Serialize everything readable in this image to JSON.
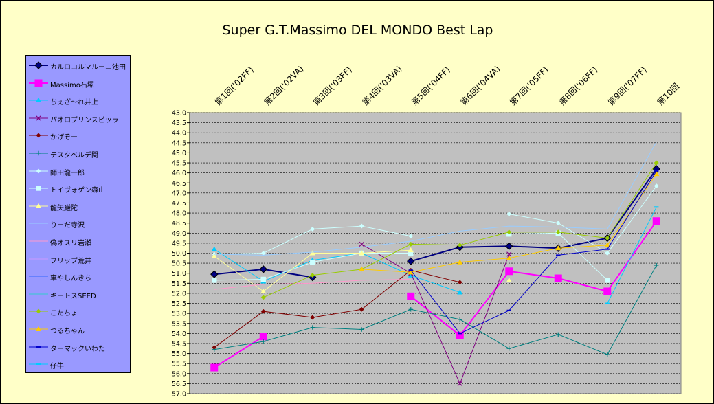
{
  "chart_data": {
    "type": "line",
    "title": "Super G.T.Massimo DEL MONDO Best Lap",
    "categories": [
      "第1回('02FF)",
      "第2回('02VA)",
      "第3回('03FF)",
      "第4回('03VA)",
      "第5回('04FF)",
      "第6回('04VA)",
      "第7回('05FF)",
      "第8回('06FF)",
      "第9回('07FF)",
      "第10回"
    ],
    "ylim": [
      57.0,
      43.0
    ],
    "ytick_step": 0.5,
    "y_reversed": true,
    "grid": true,
    "legend_position": "left",
    "series": [
      {
        "name": "カルロコルマルーニ池田",
        "color": "#000080",
        "marker": "diamond",
        "width": 2,
        "values": [
          51.05,
          50.8,
          51.2,
          null,
          50.4,
          49.7,
          49.65,
          49.75,
          49.25,
          45.8
        ]
      },
      {
        "name": "Massimo石塚",
        "color": "#ff00ff",
        "marker": "square",
        "width": 2,
        "values": [
          55.7,
          54.15,
          null,
          null,
          52.15,
          54.1,
          50.9,
          51.25,
          51.9,
          48.4
        ]
      },
      {
        "name": "ちぇざ～れ井上",
        "color": "#00ccff",
        "marker": "triangle",
        "width": 1,
        "values": [
          49.8,
          51.4,
          50.35,
          50.0,
          51.1,
          51.95,
          null,
          null,
          null,
          null
        ]
      },
      {
        "name": "パオロプリンスピッラ",
        "color": "#800080",
        "marker": "x",
        "width": 1,
        "values": [
          null,
          null,
          null,
          49.55,
          51.0,
          56.5,
          50.05,
          null,
          null,
          null
        ]
      },
      {
        "name": "かげぞー",
        "color": "#800000",
        "marker": "diamond",
        "width": 1,
        "values": [
          54.7,
          52.9,
          53.2,
          52.8,
          50.85,
          51.45,
          null,
          null,
          null,
          null
        ]
      },
      {
        "name": "テスタベルデ関",
        "color": "#008080",
        "marker": "plus",
        "width": 1,
        "values": [
          54.8,
          54.4,
          53.7,
          53.8,
          52.8,
          53.3,
          54.75,
          54.05,
          55.05,
          50.6
        ]
      },
      {
        "name": "師田龍一郎",
        "color": "#ccffff",
        "marker": "diamond",
        "width": 1,
        "values": [
          50.05,
          50.0,
          48.8,
          48.65,
          49.15,
          null,
          48.05,
          48.5,
          50.0,
          46.65
        ]
      },
      {
        "name": "トイヴォゲン森山",
        "color": "#ccffff",
        "marker": "square",
        "width": 1,
        "values": [
          51.35,
          51.3,
          50.45,
          50.0,
          50.0,
          null,
          49.05,
          49.0,
          51.35,
          null
        ]
      },
      {
        "name": "龍矢巌陀",
        "color": "#ffff99",
        "marker": "triangle",
        "width": 1,
        "values": [
          50.15,
          51.9,
          50.0,
          50.0,
          49.85,
          null,
          51.35,
          null,
          null,
          null
        ]
      },
      {
        "name": "りーだ寺沢",
        "color": "#99ccff",
        "marker": "none",
        "width": 1,
        "values": [
          50.05,
          50.1,
          49.95,
          49.7,
          49.4,
          48.9,
          48.65,
          48.7,
          48.8,
          44.45
        ]
      },
      {
        "name": "偽オスリ岩瀬",
        "color": "#ff99cc",
        "marker": "none",
        "width": 1,
        "values": [
          51.8,
          51.55,
          51.5,
          51.35,
          51.3,
          null,
          null,
          null,
          null,
          null
        ]
      },
      {
        "name": "フリップ荒井",
        "color": "#cc99ff",
        "marker": "none",
        "width": 1,
        "values": [
          56.15,
          null,
          null,
          null,
          null,
          null,
          null,
          null,
          null,
          46.75
        ]
      },
      {
        "name": "車やしんきち",
        "color": "#3366ff",
        "marker": "none",
        "width": 1,
        "values": [
          null,
          null,
          null,
          null,
          null,
          null,
          null,
          null,
          null,
          null
        ]
      },
      {
        "name": "キートスSEED",
        "color": "#33cccc",
        "marker": "none",
        "width": 1,
        "values": [
          null,
          null,
          null,
          null,
          null,
          null,
          null,
          null,
          46.7,
          null
        ]
      },
      {
        "name": "こたちょ",
        "color": "#99cc00",
        "marker": "diamond",
        "width": 1,
        "values": [
          null,
          52.2,
          51.1,
          50.8,
          49.55,
          49.6,
          48.95,
          48.95,
          49.25,
          45.5
        ]
      },
      {
        "name": "つるちゃん",
        "color": "#ffcc00",
        "marker": "triangle",
        "width": 1,
        "values": [
          null,
          null,
          null,
          50.8,
          50.95,
          50.45,
          50.25,
          49.75,
          49.6,
          46.05
        ]
      },
      {
        "name": "ターマックいわた",
        "color": "#0000cc",
        "marker": "dash",
        "width": 1,
        "values": [
          null,
          null,
          null,
          null,
          50.85,
          54.0,
          52.85,
          50.1,
          49.8,
          45.9
        ]
      },
      {
        "name": "仔牛",
        "color": "#00ccff",
        "marker": "dash",
        "width": 1,
        "values": [
          null,
          null,
          null,
          null,
          null,
          null,
          null,
          null,
          52.5,
          47.7
        ]
      }
    ]
  }
}
